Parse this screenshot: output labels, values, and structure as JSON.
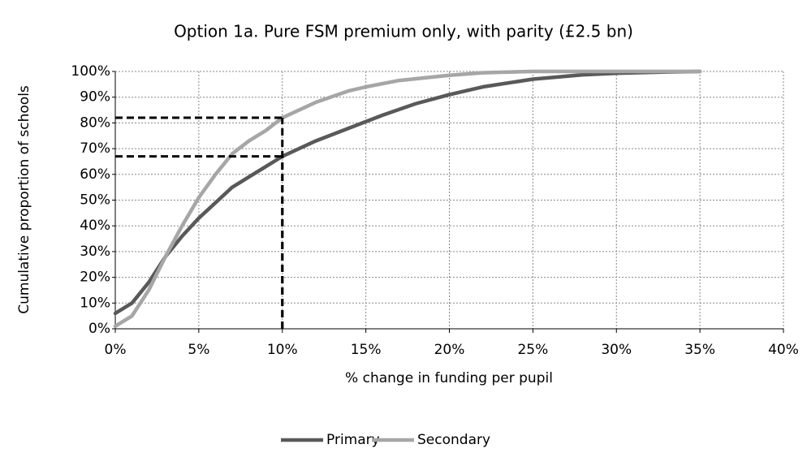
{
  "chart_data": {
    "type": "line",
    "title": "Option 1a. Pure FSM premium only, with parity (£2.5 bn)",
    "xlabel": "% change in funding per pupil",
    "ylabel": "Cumulative proportion of schools",
    "xlim": [
      0,
      40
    ],
    "xticks": [
      {
        "value": 0,
        "label": "0%"
      },
      {
        "value": 5,
        "label": "5%"
      },
      {
        "value": 10,
        "label": "10%"
      },
      {
        "value": 15,
        "label": "15%"
      },
      {
        "value": 20,
        "label": "20%"
      },
      {
        "value": 25,
        "label": "25%"
      },
      {
        "value": 30,
        "label": "30%"
      },
      {
        "value": 35,
        "label": "35%"
      },
      {
        "value": 40,
        "label": "40%"
      }
    ],
    "ylim": [
      0,
      100
    ],
    "yticks": [
      {
        "value": 0,
        "label": "0%"
      },
      {
        "value": 10,
        "label": "10%"
      },
      {
        "value": 20,
        "label": "20%"
      },
      {
        "value": 30,
        "label": "30%"
      },
      {
        "value": 40,
        "label": "40%"
      },
      {
        "value": 50,
        "label": "50%"
      },
      {
        "value": 60,
        "label": "60%"
      },
      {
        "value": 70,
        "label": "70%"
      },
      {
        "value": 80,
        "label": "80%"
      },
      {
        "value": 90,
        "label": "90%"
      },
      {
        "value": 100,
        "label": "100%"
      }
    ],
    "grid": true,
    "legend": "bottom",
    "series": [
      {
        "name": "Primary",
        "color": "#595959",
        "x": [
          0,
          1,
          2,
          3,
          4,
          5,
          6,
          7,
          8,
          9,
          10,
          12,
          14,
          16,
          18,
          20,
          22,
          25,
          28,
          30,
          33,
          35
        ],
        "values": [
          6,
          10,
          18,
          28,
          36,
          43,
          49,
          55,
          59,
          63,
          67,
          73,
          78,
          83,
          87.5,
          91,
          94,
          97,
          98.7,
          99.3,
          99.8,
          100
        ]
      },
      {
        "name": "Secondary",
        "color": "#a6a6a6",
        "x": [
          0,
          1,
          2,
          3,
          4,
          5,
          6,
          7,
          8,
          9,
          10,
          12,
          14,
          15,
          17,
          20,
          22,
          25,
          35
        ],
        "values": [
          1,
          5,
          15,
          28,
          40,
          51,
          60,
          68,
          73,
          77,
          82,
          88,
          92.5,
          94,
          96.5,
          98.5,
          99.5,
          100,
          100
        ]
      }
    ],
    "reference_lines": [
      {
        "x": 10,
        "y": 82
      },
      {
        "x": 10,
        "y": 67
      }
    ]
  }
}
